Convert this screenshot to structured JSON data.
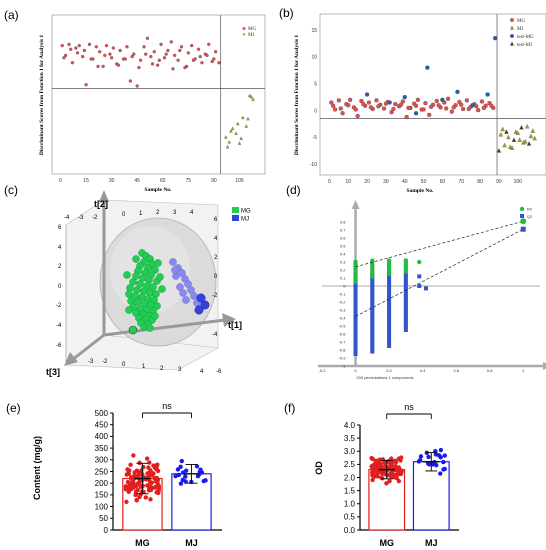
{
  "panels": {
    "a": "(a)",
    "b": "(b)",
    "c": "(c)",
    "d": "(d)",
    "e": "(e)",
    "f": "(f)"
  },
  "chart_data": [
    {
      "panel": "a",
      "type": "scatter",
      "ylabel": "Discriminant Scores from Function 1 for Analysis 1",
      "xlabel": "Sample No.",
      "xticks": [
        0,
        15,
        30,
        45,
        60,
        75,
        90,
        105
      ],
      "xlim": [
        -5,
        120
      ],
      "ylim": [
        -8.5,
        4.5
      ],
      "divider_x": 94,
      "divider_y": -1.5,
      "legend": [
        "MG",
        "MJ"
      ],
      "series": [
        {
          "name": "MG",
          "color": "#e05050",
          "marker": "circle",
          "x": [
            1,
            3,
            5,
            7,
            9,
            11,
            13,
            15,
            17,
            19,
            21,
            23,
            25,
            27,
            29,
            31,
            33,
            35,
            37,
            39,
            41,
            43,
            45,
            47,
            49,
            51,
            53,
            55,
            57,
            59,
            61,
            63,
            65,
            67,
            69,
            71,
            73,
            75,
            77,
            79,
            81,
            83,
            85,
            87,
            89,
            91,
            93,
            2,
            6,
            10,
            14,
            18,
            22,
            26,
            30,
            34,
            38,
            42,
            46,
            50,
            54,
            58,
            62,
            66,
            70,
            74,
            78,
            82,
            86,
            90
          ],
          "y": [
            2.0,
            1.2,
            2.1,
            0.6,
            1.8,
            2.0,
            1.1,
            -1.2,
            2.1,
            0.9,
            1.9,
            1.5,
            0.3,
            2.0,
            1.3,
            1.8,
            0.5,
            1.6,
            0.9,
            1.9,
            -0.9,
            1.3,
            -1.3,
            0.8,
            1.9,
            2.6,
            1.1,
            1.5,
            0.4,
            2.1,
            1.0,
            1.6,
            2.3,
            1.2,
            0.8,
            1.9,
            0.2,
            1.4,
            2.0,
            0.9,
            1.7,
            0.6,
            1.3,
            2.1,
            0.7,
            1.5,
            0.6,
            1.0,
            1.7,
            1.4,
            1.6,
            0.9,
            0.3,
            1.2,
            1.0,
            0.4,
            0.9,
            1.1,
            0.2,
            1.3,
            0.5,
            0.8,
            1.3,
            0.1,
            1.6,
            0.3,
            0.8,
            1.1,
            1.2,
            0.9
          ]
        },
        {
          "name": "MJ",
          "color": "#a8a020",
          "marker": "triangle",
          "x": [
            97,
            99,
            101,
            103,
            105,
            107,
            109,
            111,
            113,
            98,
            100,
            104,
            106,
            110,
            112
          ],
          "y": [
            -5.5,
            -5.9,
            -4.8,
            -5.2,
            -6.0,
            -3.9,
            -4.6,
            -2.1,
            -2.4,
            -6.3,
            -5.0,
            -4.4,
            -5.6,
            -4.0,
            -2.2
          ]
        }
      ]
    },
    {
      "panel": "b",
      "type": "scatter",
      "ylabel": "Discriminant Scores from Function 1 for Analysis 1",
      "xlabel": "Sample No.",
      "xticks": [
        0,
        10,
        20,
        30,
        40,
        50,
        60,
        70,
        80,
        90,
        100
      ],
      "yticks": [
        -10,
        -5,
        0,
        5,
        10,
        15
      ],
      "xlim": [
        -5,
        115
      ],
      "ylim": [
        -12,
        18
      ],
      "divider_x": 89,
      "divider_y": -1.5,
      "legend": [
        "MG",
        "MJ",
        "test-MG",
        "test-MJ"
      ],
      "series": [
        {
          "name": "MG",
          "color": "#e05050",
          "marker": "circle",
          "x": [
            1,
            3,
            5,
            7,
            9,
            11,
            13,
            15,
            17,
            19,
            21,
            23,
            25,
            27,
            29,
            31,
            33,
            35,
            37,
            39,
            41,
            43,
            45,
            47,
            49,
            51,
            53,
            55,
            57,
            59,
            61,
            63,
            65,
            67,
            69,
            71,
            73,
            75,
            77,
            79,
            81,
            83,
            85,
            87,
            2,
            6,
            10,
            14,
            18,
            22,
            26,
            30,
            34,
            38,
            42,
            46,
            50,
            54,
            58,
            62,
            66,
            70,
            74,
            78,
            82,
            86
          ],
          "y": [
            1.5,
            0.2,
            1.9,
            -0.5,
            1.2,
            2.0,
            0.6,
            -1.0,
            1.8,
            0.9,
            1.5,
            0.3,
            1.9,
            1.1,
            0.4,
            1.6,
            -0.3,
            1.2,
            0.8,
            1.7,
            -1.2,
            0.5,
            1.3,
            2.0,
            0.2,
            1.4,
            -0.8,
            1.1,
            1.8,
            0.6,
            1.5,
            2.2,
            -0.2,
            1.0,
            1.6,
            0.3,
            1.9,
            0.7,
            1.2,
            0.1,
            1.7,
            0.9,
            1.4,
            0.5,
            0.9,
            0.4,
            1.0,
            0.2,
            1.2,
            0.6,
            0.8,
            1.3,
            0.3,
            1.1,
            0.5,
            0.9,
            0.2,
            0.7,
            1.0,
            0.4,
            0.6,
            1.1,
            0.3,
            0.8,
            0.5,
            0.9
          ]
        },
        {
          "name": "MJ",
          "color": "#a8a020",
          "marker": "triangle",
          "x": [
            91,
            93,
            95,
            97,
            99,
            101,
            103,
            105,
            107,
            109,
            92,
            96,
            100,
            104,
            108
          ],
          "y": [
            -4.5,
            -6.5,
            -5.0,
            -7.0,
            -4.0,
            -5.5,
            -6.0,
            -3.0,
            -4.8,
            -5.2,
            -3.5,
            -6.8,
            -4.2,
            -5.8,
            -3.8
          ]
        },
        {
          "name": "test-MG",
          "color": "#2060b0",
          "marker": "circle",
          "x": [
            20,
            32,
            40,
            52,
            60,
            68,
            76,
            84,
            88,
            46
          ],
          "y": [
            3.0,
            1.5,
            2.5,
            8.0,
            2.0,
            3.5,
            1.0,
            3.0,
            13.5,
            -0.5
          ]
        },
        {
          "name": "test-MJ",
          "color": "#404020",
          "marker": "triangle",
          "x": [
            90,
            94,
            98,
            102,
            106
          ],
          "y": [
            -7.5,
            -4.0,
            -5.5,
            -3.2,
            -6.2
          ]
        }
      ]
    },
    {
      "panel": "c",
      "type": "scatter",
      "subtype": "3D score plot",
      "axes": [
        "t[1]",
        "t[2]",
        "t[3]"
      ],
      "legend": [
        "MG",
        "MJ"
      ],
      "series": [
        {
          "name": "MG",
          "color": "#22cc55"
        },
        {
          "name": "MJ",
          "color": "#3344dd"
        }
      ]
    },
    {
      "panel": "d",
      "type": "scatter",
      "xlabel": "200 permutations 1 components",
      "xticks": [
        "-0.2",
        "0",
        "0.2",
        "0.4",
        "0.6",
        "0.8",
        "1"
      ],
      "yticks": [
        "-1",
        "-0.9",
        "-0.8",
        "-0.7",
        "-0.6",
        "-0.5",
        "-0.4",
        "-0.3",
        "-0.2",
        "-0.1",
        "0",
        "0.1",
        "0.2",
        "0.3",
        "0.4",
        "0.5",
        "0.6",
        "0.7",
        "0.8"
      ],
      "xlim": [
        -0.2,
        1.1
      ],
      "ylim": [
        -1.0,
        0.9
      ],
      "legend": [
        "R2",
        "Q2"
      ],
      "series": [
        {
          "name": "R2",
          "color": "#22bb44",
          "intercept_line": [
            [
              0,
              0.24
            ],
            [
              1,
              0.81
            ]
          ],
          "final": [
            1,
            0.81
          ]
        },
        {
          "name": "Q2",
          "color": "#3355cc",
          "intercept_line": [
            [
              0,
              -0.38
            ],
            [
              1,
              0.71
            ]
          ],
          "final": [
            1,
            0.71
          ]
        }
      ]
    },
    {
      "panel": "e",
      "type": "bar",
      "ylabel": "Content  (mg/g)",
      "categories": [
        "MG",
        "MJ"
      ],
      "values": [
        220,
        240
      ],
      "errors": [
        65,
        40
      ],
      "ylim": [
        0,
        500
      ],
      "yticks": [
        0,
        50,
        100,
        150,
        200,
        250,
        300,
        350,
        400,
        450,
        500
      ],
      "significance": "ns",
      "colors": [
        "#e02020",
        "#1a1aee"
      ]
    },
    {
      "panel": "f",
      "type": "bar",
      "ylabel": "OD",
      "categories": [
        "MG",
        "MJ"
      ],
      "values": [
        2.3,
        2.6
      ],
      "errors": [
        0.35,
        0.35
      ],
      "ylim": [
        0,
        4.0
      ],
      "yticks": [
        0.0,
        0.5,
        1.0,
        1.5,
        2.0,
        2.5,
        3.0,
        3.5,
        4.0
      ],
      "significance": "ns",
      "colors": [
        "#e02020",
        "#1a1aee"
      ]
    }
  ]
}
